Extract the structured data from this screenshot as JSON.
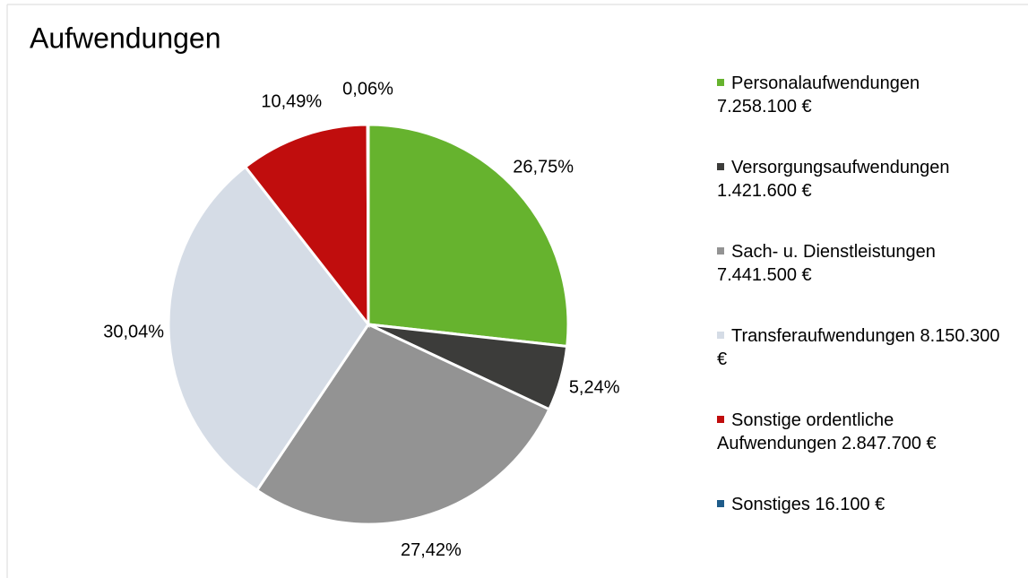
{
  "chart_data": {
    "type": "pie",
    "title": "Aufwendungen",
    "categories": [
      "Personalaufwendungen 7.258.100 €",
      "Versorgungsaufwendungen 1.421.600 €",
      "Sach- u. Dienstleistungen 7.441.500 €",
      "Transferaufwendungen 8.150.300 €",
      "Sonstige ordentliche Aufwendungen  2.847.700 €",
      "Sonstiges 16.100 €"
    ],
    "values": [
      26.75,
      5.24,
      27.42,
      30.04,
      10.49,
      0.06
    ],
    "value_labels": [
      "26,75%",
      "5,24%",
      "27,42%",
      "30,04%",
      "10,49%",
      "0,06%"
    ],
    "colors": [
      "#66b32e",
      "#3c3c3a",
      "#939393",
      "#d5dce6",
      "#c00d0d",
      "#1f5c8a"
    ],
    "legend": "right"
  }
}
